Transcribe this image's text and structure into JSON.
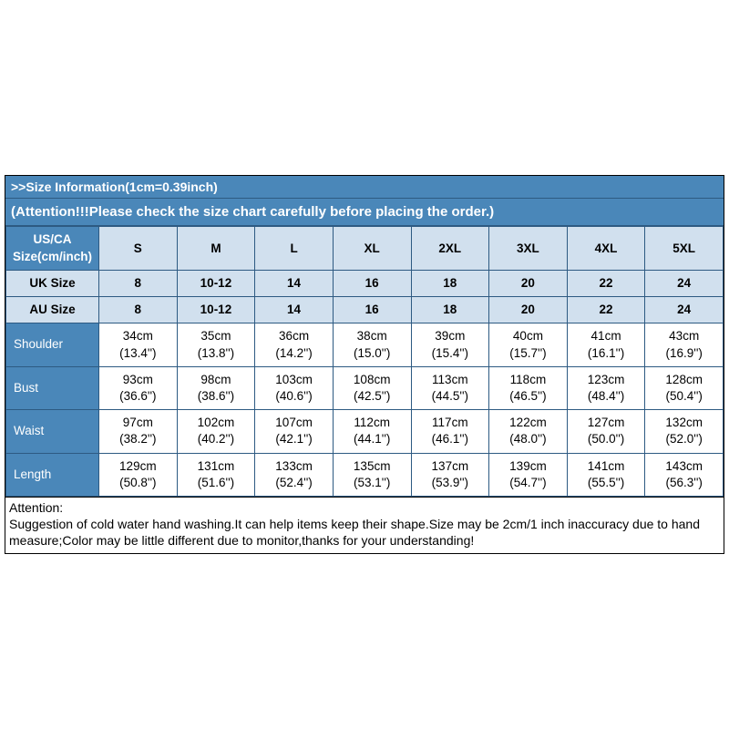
{
  "banner_top": ">>Size Information(1cm=0.39inch)",
  "banner_sub": "(Attention!!!Please check the size chart carefully before placing the order.)",
  "header_label": "US/CA Size(cm/inch)",
  "size_headers": [
    "S",
    "M",
    "L",
    "XL",
    "2XL",
    "3XL",
    "4XL",
    "5XL"
  ],
  "light_rows": [
    {
      "label": "UK Size",
      "vals": [
        "8",
        "10-12",
        "14",
        "16",
        "18",
        "20",
        "22",
        "24"
      ]
    },
    {
      "label": "AU Size",
      "vals": [
        "8",
        "10-12",
        "14",
        "16",
        "18",
        "20",
        "22",
        "24"
      ]
    }
  ],
  "dark_rows": [
    {
      "label": "Shoulder",
      "vals": [
        {
          "cm": "34cm",
          "in": "(13.4'')"
        },
        {
          "cm": "35cm",
          "in": "(13.8'')"
        },
        {
          "cm": "36cm",
          "in": "(14.2'')"
        },
        {
          "cm": "38cm",
          "in": "(15.0'')"
        },
        {
          "cm": "39cm",
          "in": "(15.4'')"
        },
        {
          "cm": "40cm",
          "in": "(15.7'')"
        },
        {
          "cm": "41cm",
          "in": "(16.1'')"
        },
        {
          "cm": "43cm",
          "in": "(16.9'')"
        }
      ]
    },
    {
      "label": "Bust",
      "vals": [
        {
          "cm": "93cm",
          "in": "(36.6'')"
        },
        {
          "cm": "98cm",
          "in": "(38.6'')"
        },
        {
          "cm": "103cm",
          "in": "(40.6'')"
        },
        {
          "cm": "108cm",
          "in": "(42.5'')"
        },
        {
          "cm": "113cm",
          "in": "(44.5'')"
        },
        {
          "cm": "118cm",
          "in": "(46.5'')"
        },
        {
          "cm": "123cm",
          "in": "(48.4'')"
        },
        {
          "cm": "128cm",
          "in": "(50.4'')"
        }
      ]
    },
    {
      "label": "Waist",
      "vals": [
        {
          "cm": "97cm",
          "in": "(38.2'')"
        },
        {
          "cm": "102cm",
          "in": "(40.2'')"
        },
        {
          "cm": "107cm",
          "in": "(42.1'')"
        },
        {
          "cm": "112cm",
          "in": "(44.1'')"
        },
        {
          "cm": "117cm",
          "in": "(46.1'')"
        },
        {
          "cm": "122cm",
          "in": "(48.0'')"
        },
        {
          "cm": "127cm",
          "in": "(50.0'')"
        },
        {
          "cm": "132cm",
          "in": "(52.0'')"
        }
      ]
    },
    {
      "label": "Length",
      "vals": [
        {
          "cm": "129cm",
          "in": "(50.8'')"
        },
        {
          "cm": "131cm",
          "in": "(51.6'')"
        },
        {
          "cm": "133cm",
          "in": "(52.4'')"
        },
        {
          "cm": "135cm",
          "in": "(53.1'')"
        },
        {
          "cm": "137cm",
          "in": "(53.9'')"
        },
        {
          "cm": "139cm",
          "in": "(54.7'')"
        },
        {
          "cm": "141cm",
          "in": "(55.5'')"
        },
        {
          "cm": "143cm",
          "in": "(56.3'')"
        }
      ]
    }
  ],
  "note_title": "Attention:",
  "note_body": "Suggestion of cold water hand washing.It can help items keep their shape.Size may be 2cm/1 inch inaccuracy due to hand measure;Color may be little different due to monitor,thanks for your understanding!",
  "colors": {
    "header_bg": "#4a87b9",
    "light_bg": "#d1e0ee",
    "border": "#2d5a82",
    "text_light": "#ffffff",
    "text_dark": "#000000"
  }
}
